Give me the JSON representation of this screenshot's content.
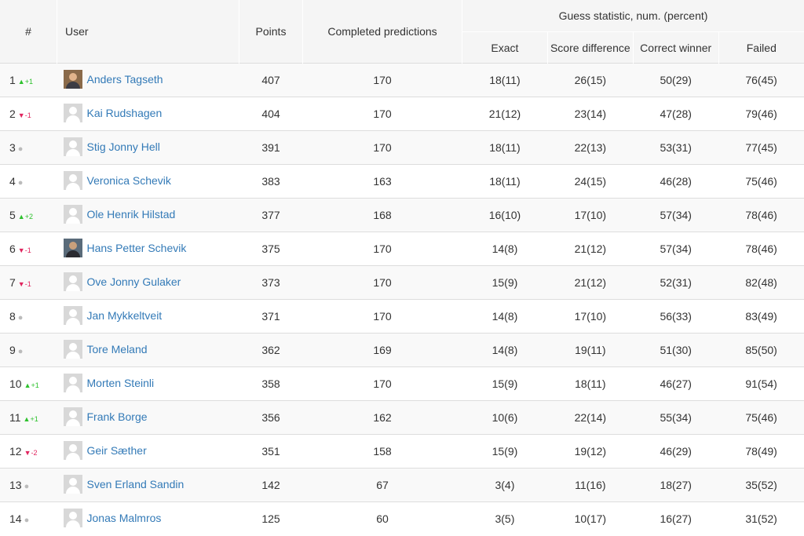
{
  "headers": {
    "rank": "#",
    "user": "User",
    "points": "Points",
    "completed": "Completed predictions",
    "guess_group": "Guess statistic, num. (percent)",
    "exact": "Exact",
    "score_difference": "Score difference",
    "correct_winner": "Correct winner",
    "failed": "Failed"
  },
  "colors": {
    "link": "#337ab7",
    "up": "#2dc12d",
    "down": "#e0245e",
    "same": "#bbbbbb"
  },
  "rows": [
    {
      "rank": "1",
      "trend": "up",
      "change": "+1",
      "avatar": "photo1",
      "name": "Anders Tagseth",
      "points": "407",
      "completed": "170",
      "exact": "18(11)",
      "score_diff": "26(15)",
      "correct_winner": "50(29)",
      "failed": "76(45)"
    },
    {
      "rank": "2",
      "trend": "down",
      "change": "-1",
      "avatar": "default",
      "name": "Kai Rudshagen",
      "points": "404",
      "completed": "170",
      "exact": "21(12)",
      "score_diff": "23(14)",
      "correct_winner": "47(28)",
      "failed": "79(46)"
    },
    {
      "rank": "3",
      "trend": "same",
      "change": "",
      "avatar": "default",
      "name": "Stig Jonny Hell",
      "points": "391",
      "completed": "170",
      "exact": "18(11)",
      "score_diff": "22(13)",
      "correct_winner": "53(31)",
      "failed": "77(45)"
    },
    {
      "rank": "4",
      "trend": "same",
      "change": "",
      "avatar": "default",
      "name": "Veronica Schevik",
      "points": "383",
      "completed": "163",
      "exact": "18(11)",
      "score_diff": "24(15)",
      "correct_winner": "46(28)",
      "failed": "75(46)"
    },
    {
      "rank": "5",
      "trend": "up",
      "change": "+2",
      "avatar": "default",
      "name": "Ole Henrik Hilstad",
      "points": "377",
      "completed": "168",
      "exact": "16(10)",
      "score_diff": "17(10)",
      "correct_winner": "57(34)",
      "failed": "78(46)"
    },
    {
      "rank": "6",
      "trend": "down",
      "change": "-1",
      "avatar": "photo2",
      "name": "Hans Petter Schevik",
      "points": "375",
      "completed": "170",
      "exact": "14(8)",
      "score_diff": "21(12)",
      "correct_winner": "57(34)",
      "failed": "78(46)"
    },
    {
      "rank": "7",
      "trend": "down",
      "change": "-1",
      "avatar": "default",
      "name": "Ove Jonny Gulaker",
      "points": "373",
      "completed": "170",
      "exact": "15(9)",
      "score_diff": "21(12)",
      "correct_winner": "52(31)",
      "failed": "82(48)"
    },
    {
      "rank": "8",
      "trend": "same",
      "change": "",
      "avatar": "default",
      "name": "Jan Mykkeltveit",
      "points": "371",
      "completed": "170",
      "exact": "14(8)",
      "score_diff": "17(10)",
      "correct_winner": "56(33)",
      "failed": "83(49)"
    },
    {
      "rank": "9",
      "trend": "same",
      "change": "",
      "avatar": "default",
      "name": "Tore Meland",
      "points": "362",
      "completed": "169",
      "exact": "14(8)",
      "score_diff": "19(11)",
      "correct_winner": "51(30)",
      "failed": "85(50)"
    },
    {
      "rank": "10",
      "trend": "up",
      "change": "+1",
      "avatar": "default",
      "name": "Morten Steinli",
      "points": "358",
      "completed": "170",
      "exact": "15(9)",
      "score_diff": "18(11)",
      "correct_winner": "46(27)",
      "failed": "91(54)"
    },
    {
      "rank": "11",
      "trend": "up",
      "change": "+1",
      "avatar": "default",
      "name": "Frank Borge",
      "points": "356",
      "completed": "162",
      "exact": "10(6)",
      "score_diff": "22(14)",
      "correct_winner": "55(34)",
      "failed": "75(46)"
    },
    {
      "rank": "12",
      "trend": "down",
      "change": "-2",
      "avatar": "default",
      "name": "Geir Sæther",
      "points": "351",
      "completed": "158",
      "exact": "15(9)",
      "score_diff": "19(12)",
      "correct_winner": "46(29)",
      "failed": "78(49)"
    },
    {
      "rank": "13",
      "trend": "same",
      "change": "",
      "avatar": "default",
      "name": "Sven Erland Sandin",
      "points": "142",
      "completed": "67",
      "exact": "3(4)",
      "score_diff": "11(16)",
      "correct_winner": "18(27)",
      "failed": "35(52)"
    },
    {
      "rank": "14",
      "trend": "same",
      "change": "",
      "avatar": "default",
      "name": "Jonas Malmros",
      "points": "125",
      "completed": "60",
      "exact": "3(5)",
      "score_diff": "10(17)",
      "correct_winner": "16(27)",
      "failed": "31(52)"
    }
  ]
}
